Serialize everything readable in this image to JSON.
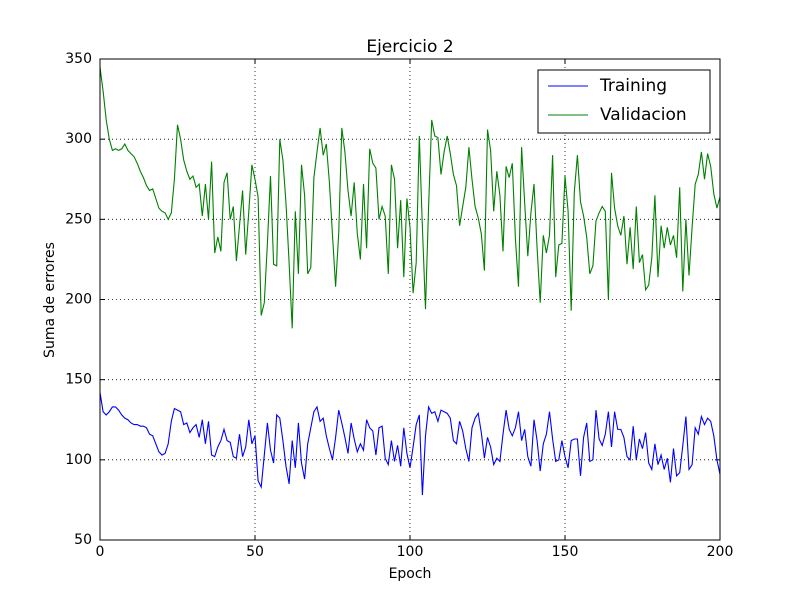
{
  "chart_data": {
    "type": "line",
    "title": "Ejercicio 2",
    "x_label": "Epoch",
    "y_label": "Suma de errores",
    "x": [
      0,
      1,
      2,
      3,
      4,
      5,
      6,
      7,
      8,
      9,
      10,
      11,
      12,
      13,
      14,
      15,
      16,
      17,
      18,
      19,
      20,
      21,
      22,
      23,
      24,
      25,
      26,
      27,
      28,
      29,
      30,
      31,
      32,
      33,
      34,
      35,
      36,
      37,
      38,
      39,
      40,
      41,
      42,
      43,
      44,
      45,
      46,
      47,
      48,
      49,
      50,
      51,
      52,
      53,
      54,
      55,
      56,
      57,
      58,
      59,
      60,
      61,
      62,
      63,
      64,
      65,
      66,
      67,
      68,
      69,
      70,
      71,
      72,
      73,
      74,
      75,
      76,
      77,
      78,
      79,
      80,
      81,
      82,
      83,
      84,
      85,
      86,
      87,
      88,
      89,
      90,
      91,
      92,
      93,
      94,
      95,
      96,
      97,
      98,
      99,
      100,
      101,
      102,
      103,
      104,
      105,
      106,
      107,
      108,
      109,
      110,
      111,
      112,
      113,
      114,
      115,
      116,
      117,
      118,
      119,
      120,
      121,
      122,
      123,
      124,
      125,
      126,
      127,
      128,
      129,
      130,
      131,
      132,
      133,
      134,
      135,
      136,
      137,
      138,
      139,
      140,
      141,
      142,
      143,
      144,
      145,
      146,
      147,
      148,
      149,
      150,
      151,
      152,
      153,
      154,
      155,
      156,
      157,
      158,
      159,
      160,
      161,
      162,
      163,
      164,
      165,
      166,
      167,
      168,
      169,
      170,
      171,
      172,
      173,
      174,
      175,
      176,
      177,
      178,
      179,
      180,
      181,
      182,
      183,
      184,
      185,
      186,
      187,
      188,
      189,
      190,
      191,
      192,
      193,
      194,
      195,
      196,
      197,
      198,
      199,
      200
    ],
    "series": [
      {
        "name": "Training",
        "color": "#0000ff",
        "values": [
          142,
          130,
          128,
          130,
          133,
          133,
          131,
          128,
          126,
          125,
          123,
          122,
          122,
          121,
          121,
          120,
          116,
          115,
          110,
          105,
          103,
          104,
          110,
          124,
          132,
          131,
          130,
          122,
          123,
          117,
          120,
          122,
          114,
          125,
          110,
          124,
          103,
          102,
          108,
          112,
          119,
          112,
          111,
          102,
          101,
          116,
          102,
          108,
          125,
          110,
          115,
          87,
          83,
          103,
          123,
          106,
          98,
          128,
          126,
          112,
          96,
          85,
          112,
          95,
          123,
          98,
          88,
          110,
          120,
          130,
          133,
          124,
          126,
          115,
          107,
          100,
          114,
          131,
          123,
          114,
          104,
          123,
          113,
          105,
          110,
          106,
          125,
          120,
          118,
          103,
          120,
          121,
          101,
          97,
          112,
          99,
          109,
          96,
          120,
          104,
          95,
          108,
          122,
          128,
          78,
          115,
          133,
          129,
          130,
          124,
          131,
          130,
          129,
          126,
          112,
          110,
          124,
          118,
          107,
          99,
          120,
          126,
          129,
          117,
          101,
          114,
          108,
          97,
          101,
          99,
          116,
          131,
          119,
          115,
          120,
          130,
          112,
          119,
          102,
          96,
          125,
          112,
          93,
          110,
          116,
          130,
          113,
          99,
          100,
          112,
          102,
          95,
          112,
          113,
          113,
          90,
          114,
          123,
          99,
          100,
          131,
          113,
          109,
          116,
          130,
          108,
          130,
          119,
          119,
          114,
          102,
          100,
          121,
          100,
          113,
          107,
          117,
          98,
          94,
          110,
          97,
          103,
          94,
          101,
          86,
          107,
          90,
          92,
          109,
          127,
          94,
          97,
          120,
          116,
          127,
          122,
          126,
          124,
          115,
          100,
          91
        ]
      },
      {
        "name": "Validacion",
        "color": "#008000",
        "values": [
          345,
          330,
          312,
          300,
          293,
          294,
          293,
          294,
          297,
          293,
          291,
          289,
          285,
          280,
          276,
          271,
          268,
          269,
          263,
          257,
          255,
          254,
          250,
          254,
          275,
          309,
          300,
          287,
          280,
          275,
          277,
          270,
          272,
          252,
          272,
          250,
          286,
          229,
          239,
          230,
          273,
          279,
          250,
          258,
          224,
          246,
          268,
          228,
          255,
          284,
          275,
          264,
          190,
          198,
          235,
          277,
          222,
          221,
          300,
          287,
          260,
          223,
          182,
          255,
          216,
          284,
          265,
          216,
          220,
          276,
          292,
          307,
          290,
          297,
          273,
          240,
          208,
          241,
          307,
          292,
          268,
          252,
          273,
          241,
          225,
          272,
          232,
          294,
          285,
          282,
          250,
          258,
          252,
          216,
          284,
          275,
          232,
          262,
          214,
          263,
          245,
          204,
          223,
          302,
          245,
          194,
          258,
          312,
          302,
          301,
          278,
          292,
          302,
          291,
          278,
          271,
          246,
          258,
          270,
          295,
          275,
          258,
          251,
          241,
          218,
          306,
          293,
          255,
          280,
          265,
          230,
          283,
          276,
          285,
          238,
          208,
          295,
          260,
          227,
          254,
          272,
          232,
          198,
          240,
          229,
          240,
          290,
          214,
          234,
          235,
          277,
          255,
          193,
          267,
          290,
          261,
          252,
          239,
          216,
          221,
          249,
          254,
          258,
          255,
          200,
          279,
          257,
          246,
          240,
          252,
          222,
          245,
          219,
          258,
          223,
          228,
          206,
          209,
          226,
          265,
          214,
          246,
          232,
          245,
          234,
          240,
          226,
          270,
          205,
          250,
          215,
          245,
          272,
          278,
          292,
          275,
          291,
          283,
          266,
          257,
          264
        ]
      }
    ],
    "xlim": [
      0,
      200
    ],
    "ylim": [
      50,
      350
    ],
    "xticks": [
      0,
      50,
      100,
      150,
      200
    ],
    "yticks": [
      50,
      100,
      150,
      200,
      250,
      300,
      350
    ],
    "grid": true,
    "legend": "upper right"
  }
}
